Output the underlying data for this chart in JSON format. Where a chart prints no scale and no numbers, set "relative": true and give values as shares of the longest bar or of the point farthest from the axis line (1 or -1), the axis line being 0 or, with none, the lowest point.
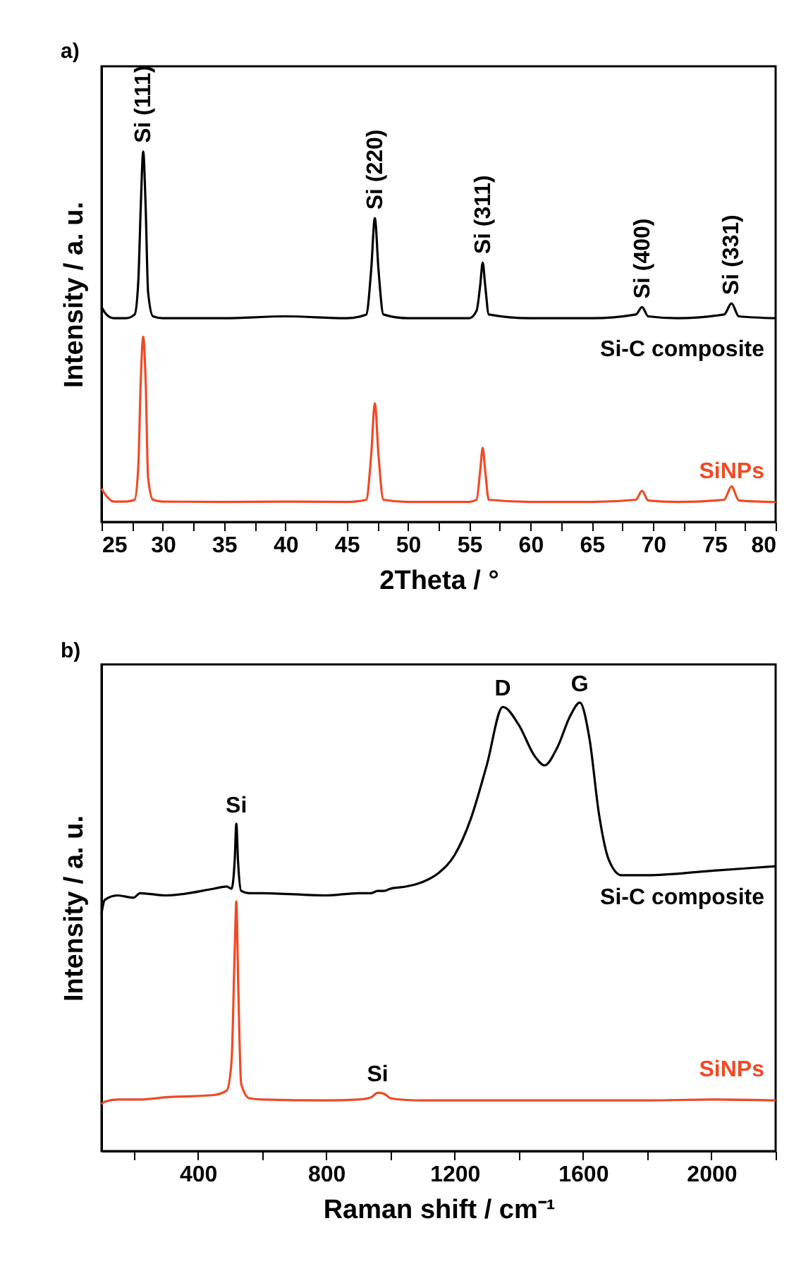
{
  "chart_data": [
    {
      "type": "line",
      "title": "a)",
      "xlabel": "2Theta / °",
      "ylabel": "Intensity / a. u.",
      "relative": true,
      "tick_labels": "x",
      "legend": false,
      "xlim": [
        25,
        80
      ],
      "xticks": [
        25,
        {
          "value": 27.5,
          "label": null
        },
        30,
        {
          "value": 32.5,
          "label": null
        },
        35,
        {
          "value": 37.5,
          "label": null
        },
        40,
        {
          "value": 42.5,
          "label": null
        },
        45,
        {
          "value": 47.5,
          "label": null
        },
        50,
        {
          "value": 52.5,
          "label": null
        },
        55,
        {
          "value": 57.5,
          "label": null
        },
        60,
        {
          "value": 62.5,
          "label": null
        },
        65,
        {
          "value": 67.5,
          "label": null
        },
        70,
        {
          "value": 72.5,
          "label": null
        },
        75,
        {
          "value": 77.5,
          "label": null
        },
        80
      ],
      "x": [
        25,
        25.4,
        26,
        27,
        27.7,
        28.0,
        28.2,
        28.4,
        28.6,
        28.8,
        29.2,
        30,
        35,
        40,
        45,
        46.6,
        47.0,
        47.3,
        47.6,
        48.0,
        50,
        55,
        55.6,
        55.9,
        56.1,
        56.3,
        56.6,
        60,
        65,
        68.6,
        69.1,
        69.6,
        72,
        75.8,
        76.4,
        77.0,
        80
      ],
      "series": [
        {
          "name": "Si-C composite",
          "color": "#000000",
          "values": [
            0.58,
            0.56,
            0.55,
            0.55,
            0.56,
            0.65,
            0.85,
            1.0,
            0.85,
            0.62,
            0.555,
            0.55,
            0.55,
            0.555,
            0.55,
            0.56,
            0.68,
            0.82,
            0.68,
            0.56,
            0.55,
            0.55,
            0.57,
            0.64,
            0.7,
            0.64,
            0.56,
            0.55,
            0.55,
            0.56,
            0.58,
            0.555,
            0.55,
            0.56,
            0.59,
            0.555,
            0.55
          ]
        },
        {
          "name": "SiNPs",
          "color": "#f04a26",
          "values": [
            0.09,
            0.07,
            0.055,
            0.055,
            0.06,
            0.15,
            0.38,
            0.5,
            0.38,
            0.12,
            0.06,
            0.055,
            0.054,
            0.055,
            0.054,
            0.06,
            0.18,
            0.32,
            0.18,
            0.06,
            0.054,
            0.054,
            0.06,
            0.14,
            0.2,
            0.14,
            0.06,
            0.054,
            0.054,
            0.06,
            0.084,
            0.058,
            0.054,
            0.06,
            0.096,
            0.058,
            0.054
          ]
        }
      ],
      "annotations": [
        {
          "text": "Si (111)",
          "x": 28.4,
          "y": 1.0
        },
        {
          "text": "Si (220)",
          "x": 47.3,
          "y": 0.82
        },
        {
          "text": "Si (311)",
          "x": 56.1,
          "y": 0.7
        },
        {
          "text": "Si (400)",
          "x": 69.1,
          "y": 0.58
        },
        {
          "text": "Si (331)",
          "x": 76.4,
          "y": 0.59
        }
      ]
    },
    {
      "type": "line",
      "title": "b)",
      "xlabel": "Raman shift / cm⁻¹",
      "ylabel": "Intensity / a. u.",
      "relative": true,
      "tick_labels": "x",
      "legend": false,
      "xlim": [
        100,
        2200
      ],
      "xticks": [
        {
          "value": 200,
          "label": null
        },
        400,
        {
          "value": 600,
          "label": null
        },
        800,
        {
          "value": 1000,
          "label": null
        },
        1200,
        {
          "value": 1400,
          "label": null
        },
        1600,
        {
          "value": 1800,
          "label": null
        },
        2000,
        {
          "value": 2200,
          "label": null
        }
      ],
      "x": [
        100,
        110,
        150,
        200,
        220,
        300,
        450,
        490,
        505,
        515,
        520,
        525,
        535,
        560,
        600,
        800,
        900,
        940,
        960,
        980,
        1000,
        1050,
        1100,
        1150,
        1200,
        1250,
        1300,
        1350,
        1400,
        1450,
        1480,
        1520,
        1560,
        1590,
        1620,
        1650,
        1680,
        1720,
        1800,
        2000,
        2200
      ],
      "series": [
        {
          "name": "Si-C composite",
          "color": "#000000",
          "values": [
            0.53,
            0.56,
            0.57,
            0.565,
            0.575,
            0.57,
            0.585,
            0.59,
            0.585,
            0.65,
            0.73,
            0.65,
            0.58,
            0.575,
            0.575,
            0.57,
            0.575,
            0.575,
            0.58,
            0.58,
            0.585,
            0.59,
            0.6,
            0.62,
            0.66,
            0.74,
            0.86,
            0.99,
            0.95,
            0.88,
            0.86,
            0.9,
            0.97,
            1.0,
            0.92,
            0.75,
            0.65,
            0.615,
            0.615,
            0.625,
            0.635
          ]
        },
        {
          "name": "SiNPs",
          "color": "#f04a26",
          "values": [
            0.105,
            0.11,
            0.115,
            0.115,
            0.115,
            0.12,
            0.125,
            0.135,
            0.2,
            0.45,
            0.557,
            0.4,
            0.15,
            0.118,
            0.115,
            0.113,
            0.115,
            0.12,
            0.13,
            0.128,
            0.118,
            0.114,
            0.113,
            0.113,
            0.113,
            0.113,
            0.113,
            0.113,
            0.113,
            0.113,
            0.113,
            0.113,
            0.113,
            0.113,
            0.113,
            0.113,
            0.113,
            0.113,
            0.113,
            0.115,
            0.113
          ]
        }
      ],
      "annotations": [
        {
          "text": "Si",
          "x": 520,
          "y": 0.73
        },
        {
          "text": "Si",
          "x": 960,
          "y": 0.13
        },
        {
          "text": "D",
          "x": 1350,
          "y": 0.99
        },
        {
          "text": "G",
          "x": 1590,
          "y": 1.0
        }
      ]
    }
  ]
}
